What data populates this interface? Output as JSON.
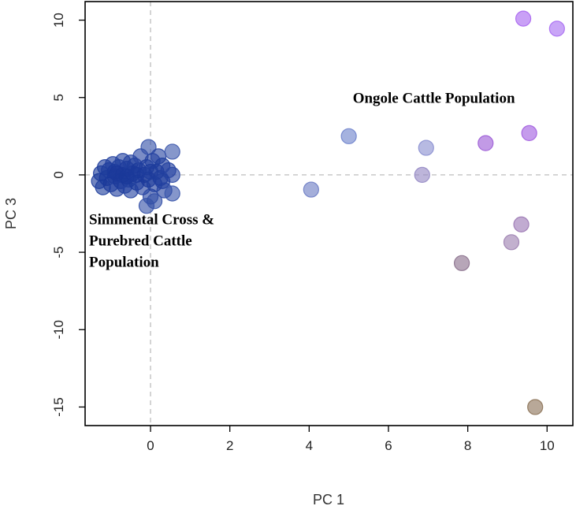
{
  "chart_data": {
    "type": "scatter",
    "title": "",
    "xlabel": "PC 1",
    "ylabel": "PC 3",
    "xlim": [
      -1.65,
      10.65
    ],
    "ylim": [
      -16.2,
      11.2
    ],
    "xticks": [
      "0",
      "2",
      "4",
      "6",
      "8",
      "10"
    ],
    "yticks": [
      "-15",
      "-10",
      "-5",
      "0",
      "5",
      "10"
    ],
    "grid": false,
    "reference_lines": {
      "x": 0,
      "y": 0,
      "style": "dashed",
      "color": "#bdbdbd"
    },
    "annotations": [
      {
        "lines": [
          "Ongole Cattle Population"
        ],
        "x": 5.1,
        "y": 4.65
      },
      {
        "lines": [
          "Simmental Cross &",
          "Purebred Cattle",
          "Population"
        ],
        "x": -1.55,
        "y": -3.2
      }
    ],
    "points": [
      {
        "x": -1.3,
        "y": -0.4,
        "color": "#1b3a9a"
      },
      {
        "x": -1.25,
        "y": 0.1,
        "color": "#1c3b9b"
      },
      {
        "x": -1.2,
        "y": -0.8,
        "color": "#1f3f9d"
      },
      {
        "x": -1.15,
        "y": 0.5,
        "color": "#1d3c9b"
      },
      {
        "x": -1.1,
        "y": -0.2,
        "color": "#1a389a"
      },
      {
        "x": -1.05,
        "y": 0.3,
        "color": "#1e3d9c"
      },
      {
        "x": -1.0,
        "y": -0.6,
        "color": "#1b399a"
      },
      {
        "x": -0.95,
        "y": 0.7,
        "color": "#203f9e"
      },
      {
        "x": -0.9,
        "y": -0.1,
        "color": "#1a3899"
      },
      {
        "x": -0.9,
        "y": 0.2,
        "color": "#1c3a9b"
      },
      {
        "x": -0.85,
        "y": -0.9,
        "color": "#22419f"
      },
      {
        "x": -0.8,
        "y": 0.5,
        "color": "#1d3c9c"
      },
      {
        "x": -0.75,
        "y": -0.4,
        "color": "#1b399a"
      },
      {
        "x": -0.7,
        "y": 0.9,
        "color": "#2442a0"
      },
      {
        "x": -0.7,
        "y": 0.0,
        "color": "#193799"
      },
      {
        "x": -0.65,
        "y": -0.7,
        "color": "#1e3d9c"
      },
      {
        "x": -0.6,
        "y": 0.4,
        "color": "#1c3a9b"
      },
      {
        "x": -0.55,
        "y": -0.3,
        "color": "#1a3899"
      },
      {
        "x": -0.5,
        "y": 0.8,
        "color": "#213f9e"
      },
      {
        "x": -0.5,
        "y": -1.0,
        "color": "#2543a1"
      },
      {
        "x": -0.45,
        "y": 0.1,
        "color": "#1b399a"
      },
      {
        "x": -0.4,
        "y": 0.6,
        "color": "#1e3d9c"
      },
      {
        "x": -0.35,
        "y": -0.5,
        "color": "#1c3b9b"
      },
      {
        "x": -0.3,
        "y": 0.3,
        "color": "#1a3899"
      },
      {
        "x": -0.25,
        "y": 1.2,
        "color": "#2a47a3"
      },
      {
        "x": -0.2,
        "y": -0.8,
        "color": "#2341a0"
      },
      {
        "x": -0.15,
        "y": 0.0,
        "color": "#193799"
      },
      {
        "x": -0.1,
        "y": 0.5,
        "color": "#1d3c9c"
      },
      {
        "x": -0.05,
        "y": 1.8,
        "color": "#3350a8"
      },
      {
        "x": -0.05,
        "y": -0.3,
        "color": "#1b399a"
      },
      {
        "x": 0.0,
        "y": -1.4,
        "color": "#2c48a4"
      },
      {
        "x": 0.05,
        "y": 0.9,
        "color": "#2240a0"
      },
      {
        "x": 0.1,
        "y": -0.6,
        "color": "#1f3e9d"
      },
      {
        "x": 0.15,
        "y": 0.2,
        "color": "#1b399a"
      },
      {
        "x": 0.2,
        "y": 1.2,
        "color": "#2845a2"
      },
      {
        "x": 0.25,
        "y": -0.2,
        "color": "#1c3a9b"
      },
      {
        "x": 0.3,
        "y": 0.6,
        "color": "#1f3e9d"
      },
      {
        "x": 0.35,
        "y": -1.0,
        "color": "#2644a1"
      },
      {
        "x": 0.45,
        "y": 0.3,
        "color": "#2341a0"
      },
      {
        "x": 0.55,
        "y": 0.0,
        "color": "#2a47a3"
      },
      {
        "x": -0.1,
        "y": -2.0,
        "color": "#3652a8"
      },
      {
        "x": 0.1,
        "y": -1.7,
        "color": "#3350a7"
      },
      {
        "x": 0.55,
        "y": -1.2,
        "color": "#3a56ab"
      },
      {
        "x": 0.55,
        "y": 1.5,
        "color": "#3c57ab"
      },
      {
        "x": -0.85,
        "y": 0.1,
        "color": "#1b399a"
      },
      {
        "x": -0.6,
        "y": -0.1,
        "color": "#1a3899"
      },
      {
        "x": -0.35,
        "y": 0.0,
        "color": "#1c3a9b"
      },
      {
        "x": 0.0,
        "y": 0.2,
        "color": "#1e3d9c"
      },
      {
        "x": 0.3,
        "y": -0.4,
        "color": "#213f9e"
      },
      {
        "x": 4.05,
        "y": -0.95,
        "color": "#6c7cc4"
      },
      {
        "x": 5.0,
        "y": 2.5,
        "color": "#6e82cc"
      },
      {
        "x": 6.85,
        "y": 0.0,
        "color": "#9488c4"
      },
      {
        "x": 6.95,
        "y": 1.75,
        "color": "#8a8fd0"
      },
      {
        "x": 7.85,
        "y": -5.7,
        "color": "#8a6f8c"
      },
      {
        "x": 8.45,
        "y": 2.05,
        "color": "#9c5cd6"
      },
      {
        "x": 9.1,
        "y": -4.35,
        "color": "#9c7fb0"
      },
      {
        "x": 9.35,
        "y": -3.2,
        "color": "#9b78b4"
      },
      {
        "x": 9.4,
        "y": 10.1,
        "color": "#a865f0"
      },
      {
        "x": 9.55,
        "y": 2.7,
        "color": "#a25ee0"
      },
      {
        "x": 9.7,
        "y": -15.0,
        "color": "#8c7358"
      },
      {
        "x": 10.25,
        "y": 9.45,
        "color": "#a86df2"
      }
    ]
  }
}
